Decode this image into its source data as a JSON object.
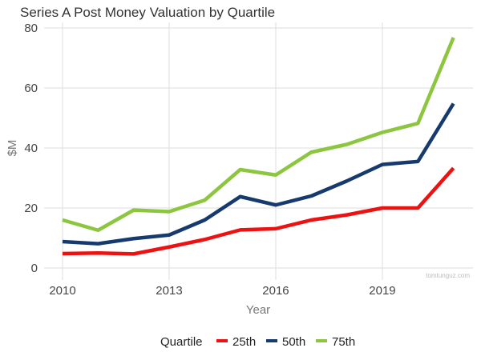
{
  "chart_data": {
    "type": "line",
    "title": "Series A Post Money Valuation by Quartile",
    "xlabel": "Year",
    "ylabel": "$M",
    "x": [
      2010,
      2011,
      2012,
      2013,
      2014,
      2015,
      2016,
      2017,
      2018,
      2019,
      2020,
      2021
    ],
    "xticks": [
      2010,
      2013,
      2016,
      2019
    ],
    "yticks": [
      0,
      20,
      40,
      60,
      80
    ],
    "xlim": [
      2009.5,
      2021.6
    ],
    "ylim": [
      -2,
      82
    ],
    "grid": true,
    "legend": {
      "title": "Quartile",
      "placement": "bottom"
    },
    "series": [
      {
        "name": "25th",
        "color": "#ee1111",
        "values": [
          4.8,
          5.0,
          4.7,
          7.0,
          9.5,
          12.7,
          13.1,
          16.0,
          17.7,
          20.0,
          20.0,
          33.3
        ]
      },
      {
        "name": "50th",
        "color": "#173a6e",
        "values": [
          8.8,
          8.1,
          9.8,
          11.0,
          16.0,
          23.8,
          21.0,
          24.0,
          29.0,
          34.5,
          35.5,
          54.8
        ]
      },
      {
        "name": "75th",
        "color": "#8cc63f",
        "values": [
          16.0,
          12.6,
          19.3,
          18.8,
          22.6,
          32.8,
          31.0,
          38.6,
          41.2,
          45.2,
          48.2,
          76.8
        ]
      }
    ],
    "watermark": "tomtunguz.com"
  }
}
